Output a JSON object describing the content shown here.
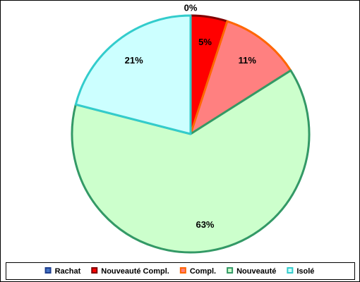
{
  "chart_data": {
    "type": "pie",
    "categories": [
      "Rachat",
      "Nouveauté Compl.",
      "Compl.",
      "Nouveauté",
      "Isolé"
    ],
    "values": [
      0,
      5,
      11,
      63,
      21
    ],
    "value_labels": [
      "0%",
      "5%",
      "11%",
      "63%",
      "21%"
    ],
    "colors": [
      "#4472c4",
      "#ff0000",
      "#ff8080",
      "#ccffcc",
      "#ccffff"
    ],
    "edge_colors": [
      "#1f3f8f",
      "#800000",
      "#ff6600",
      "#339966",
      "#33cccc"
    ],
    "legend": "bottom"
  }
}
